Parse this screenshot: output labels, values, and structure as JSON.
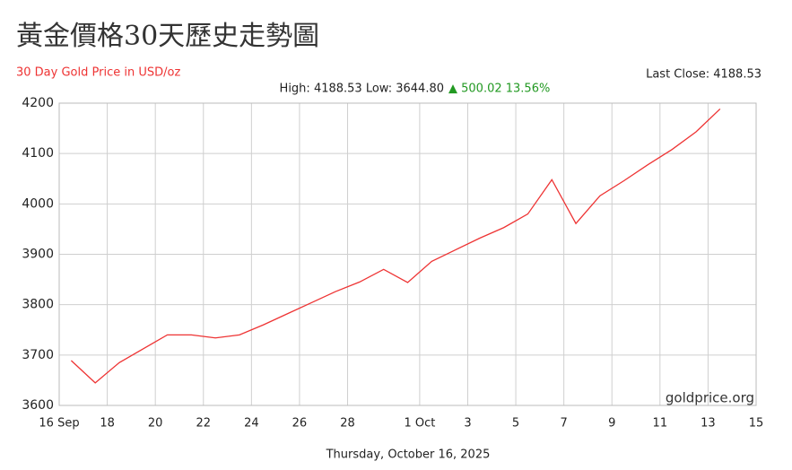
{
  "chart_data": {
    "type": "line",
    "title": "黃金價格30天歷史走勢圖",
    "subtitle": "30 Day Gold Price in USD/oz",
    "last_close": "Last Close: 4188.53",
    "stats": "High: 4188.53 Low: 3644.80",
    "change": "▲ 500.02 13.56%",
    "watermark": "goldprice.org",
    "footer": "Thursday, October 16, 2025",
    "color": "#ee3333",
    "grid": true,
    "x": [
      "16 Sep",
      "17 Sep",
      "18 Sep",
      "20 Sep",
      "21 Sep",
      "22 Sep",
      "23 Sep",
      "24 Sep",
      "25 Sep",
      "26 Sep",
      "27 Sep",
      "28 Sep",
      "29 Sep",
      "30 Sep",
      "1 Oct",
      "2 Oct",
      "3 Oct",
      "4 Oct",
      "5 Oct",
      "6 Oct",
      "7 Oct",
      "8 Oct",
      "9 Oct",
      "10 Oct",
      "11 Oct",
      "12 Oct",
      "13 Oct"
    ],
    "values": [
      3689,
      3644.8,
      3685,
      3740,
      3740,
      3734,
      3740,
      3760,
      3782,
      3804,
      3826,
      3845,
      3870,
      3844,
      3886,
      3909,
      3932,
      3953,
      3980,
      4048,
      3961,
      4016,
      4046,
      4078,
      4108,
      4143,
      4188.53
    ],
    "xlim": [
      "16 Sep",
      "15 Oct"
    ],
    "xticks": [
      {
        "value": "16 Sep",
        "label": "16 Sep"
      },
      {
        "value": "18 Sep",
        "label": "18"
      },
      {
        "value": "20 Sep",
        "label": "20"
      },
      {
        "value": "22 Sep",
        "label": "22"
      },
      {
        "value": "24 Sep",
        "label": "24"
      },
      {
        "value": "26 Sep",
        "label": "26"
      },
      {
        "value": "28 Sep",
        "label": "28"
      },
      {
        "value": "1 Oct",
        "label": "1 Oct"
      },
      {
        "value": "3 Oct",
        "label": "3"
      },
      {
        "value": "5 Oct",
        "label": "5"
      },
      {
        "value": "7 Oct",
        "label": "7"
      },
      {
        "value": "9 Oct",
        "label": "9"
      },
      {
        "value": "11 Oct",
        "label": "11"
      },
      {
        "value": "13 Oct",
        "label": "13"
      },
      {
        "value": "15 Oct",
        "label": "15"
      }
    ],
    "ylim": [
      3600,
      4200
    ],
    "yticks": [
      3600,
      3700,
      3800,
      3900,
      4000,
      4100,
      4200
    ]
  }
}
